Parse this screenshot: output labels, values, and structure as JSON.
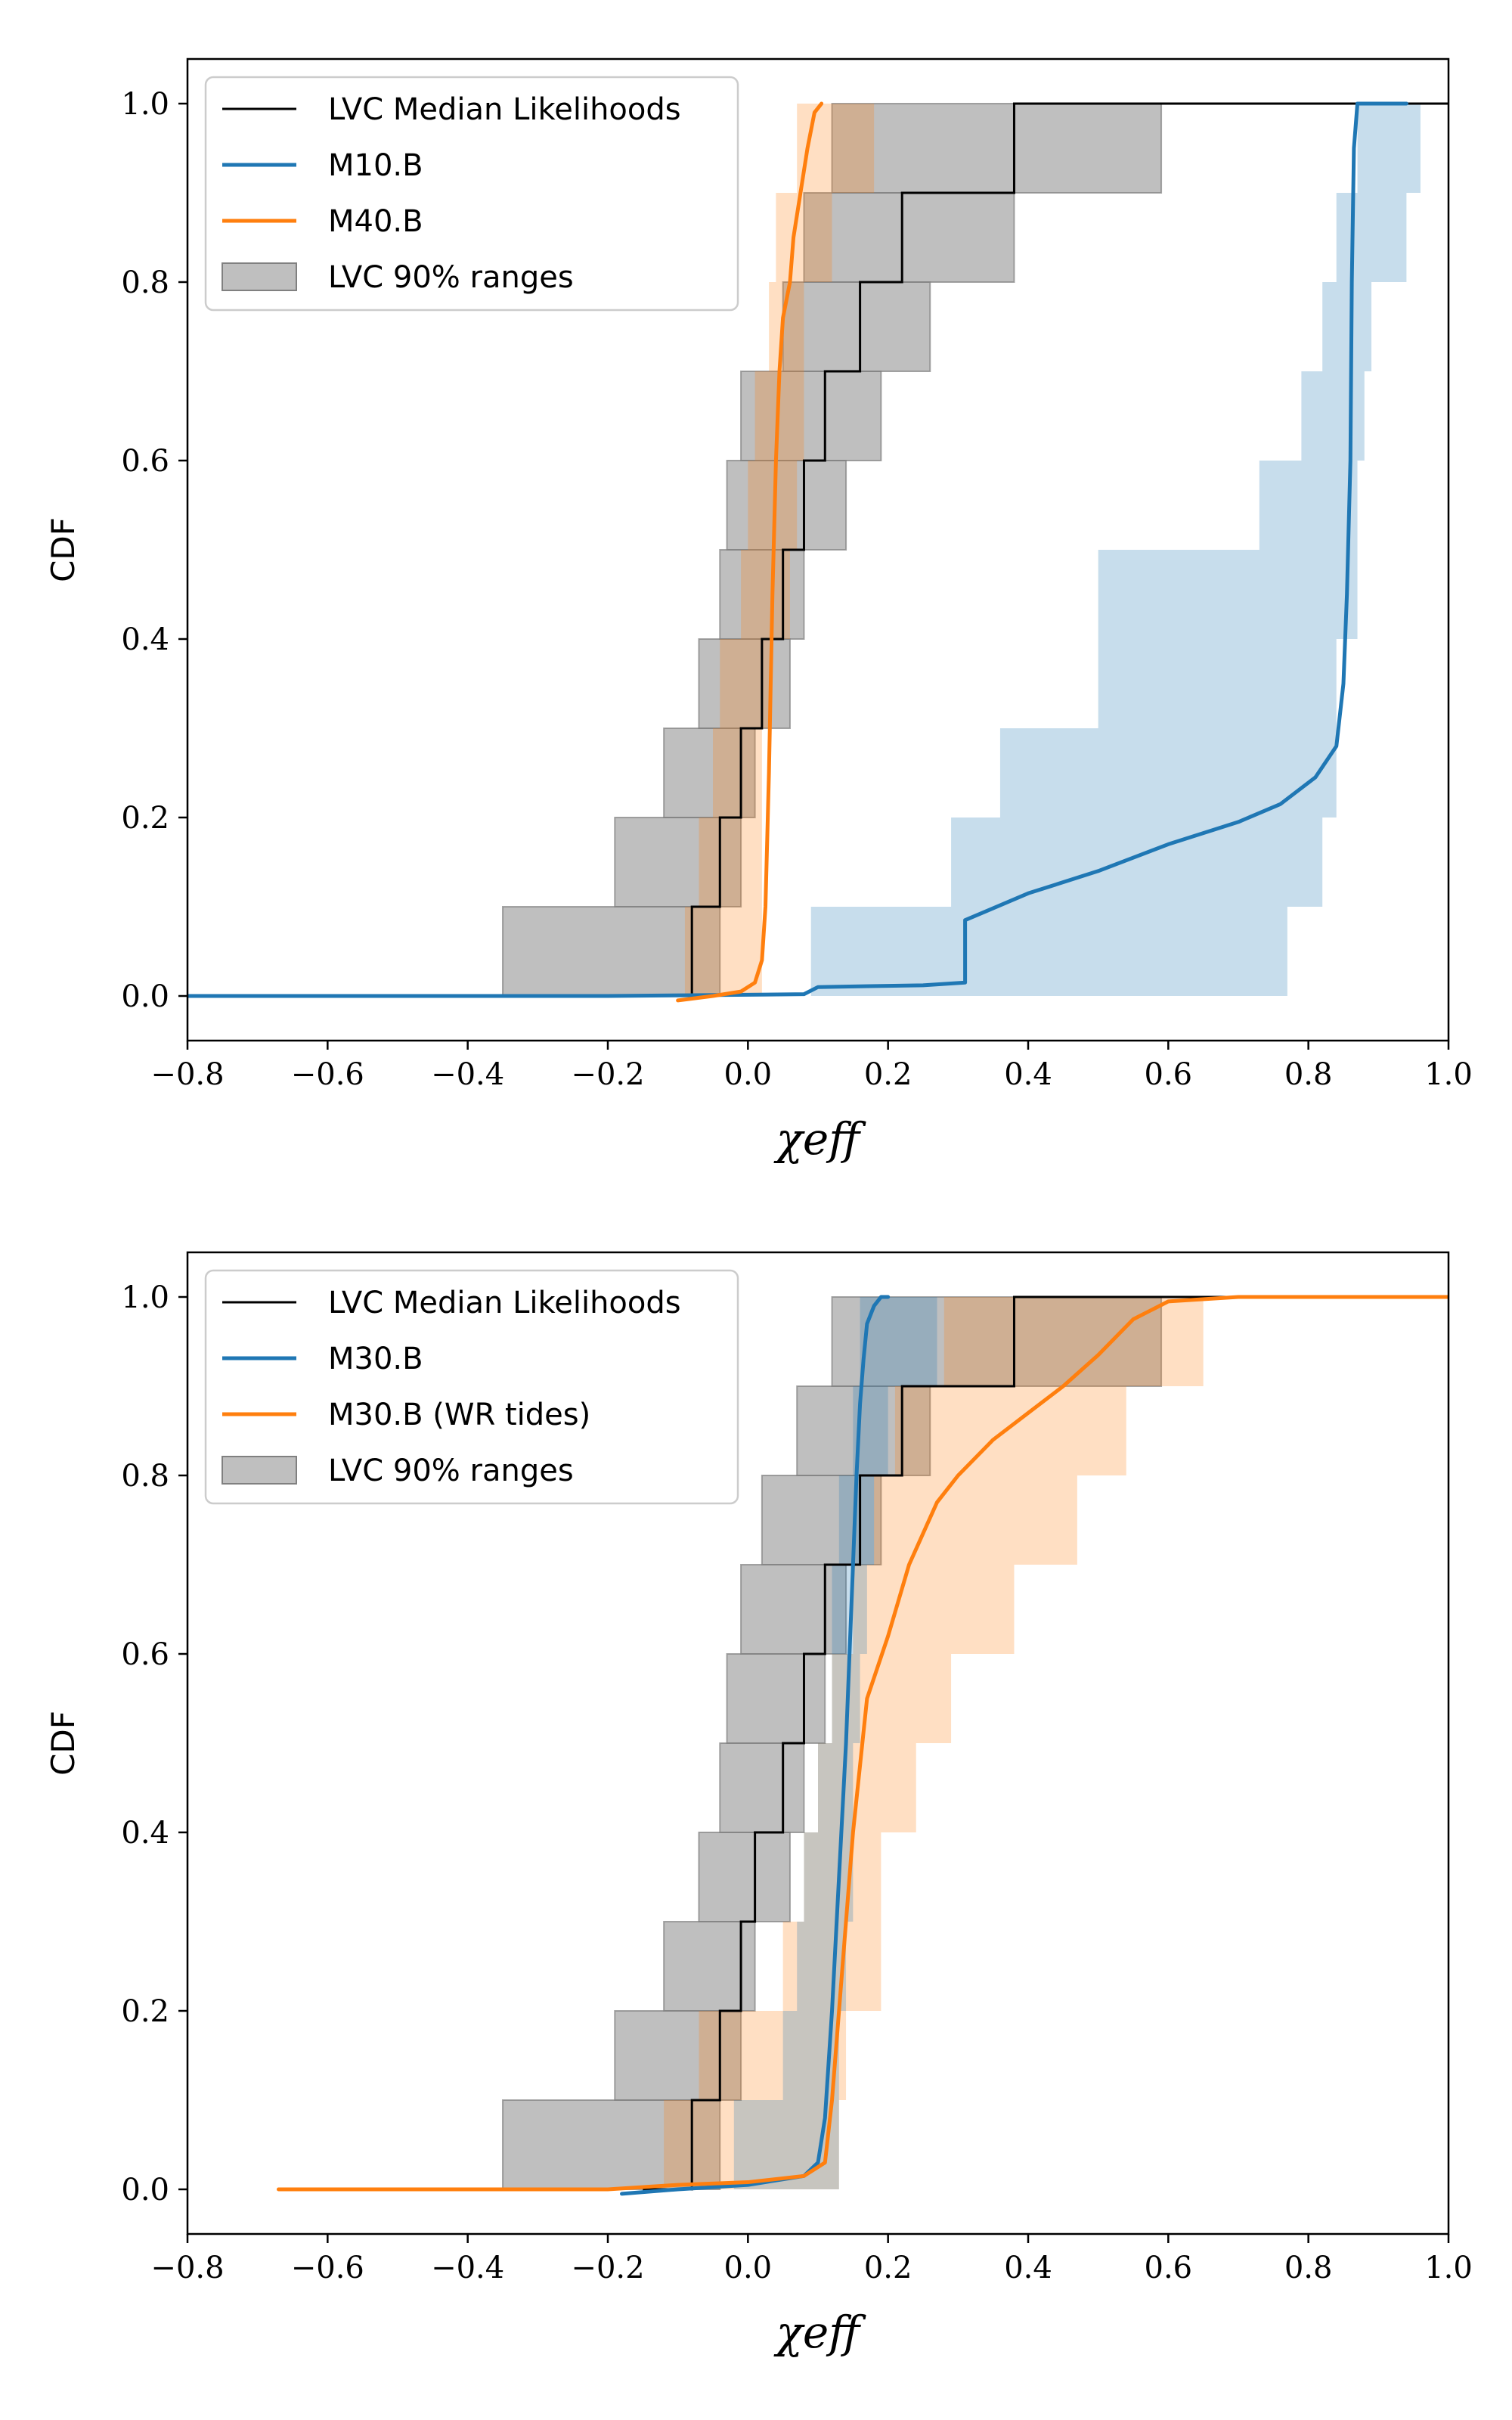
{
  "chart_data": [
    {
      "type": "line",
      "xlabel": "χeff",
      "ylabel": "CDF",
      "xlim": [
        -0.8,
        1.0
      ],
      "ylim": [
        -0.05,
        1.05
      ],
      "xticks": [
        "−0.8",
        "−0.6",
        "−0.4",
        "−0.2",
        "0.0",
        "0.2",
        "0.4",
        "0.6",
        "0.8",
        "1.0"
      ],
      "xtick_values": [
        -0.8,
        -0.6,
        -0.4,
        -0.2,
        0.0,
        0.2,
        0.4,
        0.6,
        0.8,
        1.0
      ],
      "yticks": [
        "0.0",
        "0.2",
        "0.4",
        "0.6",
        "0.8",
        "1.0"
      ],
      "ytick_values": [
        0.0,
        0.2,
        0.4,
        0.6,
        0.8,
        1.0
      ],
      "legend_position": "top-left",
      "legend": [
        {
          "label": "LVC Median Likelihoods",
          "kind": "line",
          "color": "#000000"
        },
        {
          "label": "M10.B",
          "kind": "line",
          "color": "#1f77b4"
        },
        {
          "label": "M40.B",
          "kind": "line",
          "color": "#ff7f0e"
        },
        {
          "label": "LVC 90% ranges",
          "kind": "patch",
          "color": "#808080"
        }
      ],
      "series": [
        {
          "kind": "band",
          "color": "#808080",
          "opacity": 0.5,
          "rows": [
            [
              0.0,
              0.1,
              -0.35,
              -0.04
            ],
            [
              0.1,
              0.2,
              -0.19,
              -0.01
            ],
            [
              0.2,
              0.3,
              -0.12,
              0.01
            ],
            [
              0.3,
              0.4,
              -0.07,
              0.06
            ],
            [
              0.4,
              0.5,
              -0.04,
              0.08
            ],
            [
              0.5,
              0.6,
              -0.03,
              0.14
            ],
            [
              0.6,
              0.7,
              -0.01,
              0.19
            ],
            [
              0.7,
              0.8,
              0.05,
              0.26
            ],
            [
              0.8,
              0.9,
              0.08,
              0.38
            ],
            [
              0.9,
              1.0,
              0.12,
              0.59
            ]
          ]
        },
        {
          "kind": "band",
          "color": "#ff7f0e",
          "opacity": 0.25,
          "rows": [
            [
              0.0,
              0.1,
              -0.09,
              0.02
            ],
            [
              0.1,
              0.2,
              -0.07,
              0.02
            ],
            [
              0.2,
              0.3,
              -0.05,
              0.02
            ],
            [
              0.3,
              0.4,
              -0.04,
              0.03
            ],
            [
              0.4,
              0.5,
              -0.01,
              0.06
            ],
            [
              0.5,
              0.6,
              0.0,
              0.07
            ],
            [
              0.6,
              0.7,
              0.01,
              0.08
            ],
            [
              0.7,
              0.8,
              0.03,
              0.08
            ],
            [
              0.8,
              0.9,
              0.04,
              0.12
            ],
            [
              0.9,
              1.0,
              0.07,
              0.18
            ]
          ]
        },
        {
          "kind": "band",
          "color": "#1f77b4",
          "opacity": 0.25,
          "rows": [
            [
              0.0,
              0.1,
              0.09,
              0.77
            ],
            [
              0.1,
              0.2,
              0.29,
              0.82
            ],
            [
              0.2,
              0.3,
              0.36,
              0.84
            ],
            [
              0.3,
              0.4,
              0.5,
              0.84
            ],
            [
              0.4,
              0.5,
              0.5,
              0.87
            ],
            [
              0.5,
              0.6,
              0.73,
              0.87
            ],
            [
              0.6,
              0.7,
              0.79,
              0.88
            ],
            [
              0.7,
              0.8,
              0.82,
              0.89
            ],
            [
              0.8,
              0.9,
              0.84,
              0.94
            ],
            [
              0.9,
              1.0,
              0.87,
              0.96
            ]
          ]
        },
        {
          "name": "LVC Median Likelihoods",
          "kind": "step",
          "color": "#000000",
          "width": 3,
          "x": [
            -0.15,
            -0.08,
            -0.04,
            -0.01,
            0.02,
            0.05,
            0.08,
            0.11,
            0.16,
            0.22,
            0.38,
            1.0
          ],
          "y": [
            0.0,
            0.1,
            0.2,
            0.3,
            0.4,
            0.5,
            0.6,
            0.7,
            0.8,
            0.9,
            1.0,
            1.0
          ]
        },
        {
          "name": "M10.B",
          "kind": "line",
          "color": "#1f77b4",
          "width": 5,
          "x": [
            -0.8,
            -0.2,
            0.08,
            0.1,
            0.25,
            0.31,
            0.31,
            0.34,
            0.4,
            0.5,
            0.6,
            0.7,
            0.76,
            0.81,
            0.84,
            0.85,
            0.855,
            0.86,
            0.862,
            0.865,
            0.87,
            0.9,
            0.94
          ],
          "y": [
            0.0,
            0.0,
            0.002,
            0.01,
            0.012,
            0.015,
            0.085,
            0.095,
            0.115,
            0.14,
            0.17,
            0.195,
            0.215,
            0.245,
            0.28,
            0.35,
            0.45,
            0.6,
            0.8,
            0.95,
            1.0,
            1.0,
            1.0
          ]
        },
        {
          "name": "M40.B",
          "kind": "line",
          "color": "#ff7f0e",
          "width": 5,
          "x": [
            -0.1,
            -0.05,
            -0.01,
            0.01,
            0.02,
            0.025,
            0.03,
            0.035,
            0.04,
            0.045,
            0.05,
            0.06,
            0.065,
            0.075,
            0.085,
            0.095,
            0.105
          ],
          "y": [
            -0.005,
            0.0,
            0.005,
            0.015,
            0.04,
            0.1,
            0.25,
            0.45,
            0.6,
            0.7,
            0.76,
            0.8,
            0.85,
            0.9,
            0.95,
            0.99,
            1.0
          ]
        }
      ]
    },
    {
      "type": "line",
      "xlabel": "χeff",
      "ylabel": "CDF",
      "xlim": [
        -0.8,
        1.0
      ],
      "ylim": [
        -0.05,
        1.05
      ],
      "xticks": [
        "−0.8",
        "−0.6",
        "−0.4",
        "−0.2",
        "0.0",
        "0.2",
        "0.4",
        "0.6",
        "0.8",
        "1.0"
      ],
      "xtick_values": [
        -0.8,
        -0.6,
        -0.4,
        -0.2,
        0.0,
        0.2,
        0.4,
        0.6,
        0.8,
        1.0
      ],
      "yticks": [
        "0.0",
        "0.2",
        "0.4",
        "0.6",
        "0.8",
        "1.0"
      ],
      "ytick_values": [
        0.0,
        0.2,
        0.4,
        0.6,
        0.8,
        1.0
      ],
      "legend_position": "top-left",
      "legend": [
        {
          "label": "LVC Median Likelihoods",
          "kind": "line",
          "color": "#000000"
        },
        {
          "label": "M30.B",
          "kind": "line",
          "color": "#1f77b4"
        },
        {
          "label": "M30.B (WR tides)",
          "kind": "line",
          "color": "#ff7f0e"
        },
        {
          "label": "LVC 90% ranges",
          "kind": "patch",
          "color": "#808080"
        }
      ],
      "series": [
        {
          "kind": "band",
          "color": "#808080",
          "opacity": 0.5,
          "rows": [
            [
              0.0,
              0.1,
              -0.35,
              -0.04
            ],
            [
              0.1,
              0.2,
              -0.19,
              -0.01
            ],
            [
              0.2,
              0.3,
              -0.12,
              0.01
            ],
            [
              0.3,
              0.4,
              -0.07,
              0.06
            ],
            [
              0.4,
              0.5,
              -0.04,
              0.08
            ],
            [
              0.5,
              0.6,
              -0.03,
              0.11
            ],
            [
              0.6,
              0.7,
              -0.01,
              0.14
            ],
            [
              0.7,
              0.8,
              0.02,
              0.19
            ],
            [
              0.8,
              0.9,
              0.07,
              0.26
            ],
            [
              0.9,
              1.0,
              0.12,
              0.59
            ]
          ]
        },
        {
          "kind": "band",
          "color": "#ff7f0e",
          "opacity": 0.25,
          "rows": [
            [
              0.0,
              0.1,
              -0.12,
              0.13
            ],
            [
              0.1,
              0.2,
              -0.07,
              0.14
            ],
            [
              0.2,
              0.3,
              0.05,
              0.19
            ],
            [
              0.3,
              0.4,
              0.08,
              0.19
            ],
            [
              0.4,
              0.5,
              0.1,
              0.24
            ],
            [
              0.5,
              0.6,
              0.12,
              0.29
            ],
            [
              0.6,
              0.7,
              0.15,
              0.38
            ],
            [
              0.7,
              0.8,
              0.18,
              0.47
            ],
            [
              0.8,
              0.9,
              0.21,
              0.54
            ],
            [
              0.9,
              1.0,
              0.28,
              0.65
            ]
          ]
        },
        {
          "kind": "band",
          "color": "#1f77b4",
          "opacity": 0.25,
          "rows": [
            [
              0.0,
              0.1,
              -0.02,
              0.13
            ],
            [
              0.1,
              0.2,
              0.05,
              0.13
            ],
            [
              0.2,
              0.3,
              0.07,
              0.14
            ],
            [
              0.3,
              0.4,
              0.08,
              0.15
            ],
            [
              0.4,
              0.5,
              0.1,
              0.15
            ],
            [
              0.5,
              0.6,
              0.12,
              0.16
            ],
            [
              0.6,
              0.7,
              0.12,
              0.17
            ],
            [
              0.7,
              0.8,
              0.13,
              0.18
            ],
            [
              0.8,
              0.9,
              0.15,
              0.2
            ],
            [
              0.9,
              1.0,
              0.16,
              0.27
            ]
          ]
        },
        {
          "name": "LVC Median Likelihoods",
          "kind": "step",
          "color": "#000000",
          "width": 3,
          "x": [
            -0.15,
            -0.08,
            -0.04,
            -0.01,
            0.01,
            0.05,
            0.08,
            0.11,
            0.16,
            0.22,
            0.38,
            1.0
          ],
          "y": [
            0.0,
            0.1,
            0.2,
            0.3,
            0.4,
            0.5,
            0.6,
            0.7,
            0.8,
            0.9,
            1.0,
            1.0
          ]
        },
        {
          "name": "M30.B",
          "kind": "line",
          "color": "#1f77b4",
          "width": 5,
          "x": [
            -0.18,
            -0.1,
            0.0,
            0.08,
            0.1,
            0.11,
            0.12,
            0.13,
            0.14,
            0.145,
            0.15,
            0.155,
            0.16,
            0.165,
            0.17,
            0.18,
            0.19,
            0.2
          ],
          "y": [
            -0.005,
            0.0,
            0.005,
            0.015,
            0.03,
            0.08,
            0.2,
            0.35,
            0.5,
            0.6,
            0.7,
            0.8,
            0.88,
            0.93,
            0.97,
            0.99,
            1.0,
            1.0
          ]
        },
        {
          "name": "M30.B (WR tides)",
          "kind": "line",
          "color": "#ff7f0e",
          "width": 5,
          "x": [
            -0.67,
            -0.2,
            -0.1,
            0.0,
            0.08,
            0.11,
            0.12,
            0.13,
            0.15,
            0.17,
            0.2,
            0.23,
            0.27,
            0.3,
            0.35,
            0.4,
            0.45,
            0.5,
            0.55,
            0.6,
            0.7,
            0.8,
            1.0
          ],
          "y": [
            0.0,
            0.0,
            0.005,
            0.008,
            0.015,
            0.03,
            0.1,
            0.2,
            0.4,
            0.55,
            0.62,
            0.7,
            0.77,
            0.8,
            0.84,
            0.87,
            0.9,
            0.935,
            0.975,
            0.995,
            1.0,
            1.0,
            1.0
          ]
        }
      ]
    }
  ]
}
